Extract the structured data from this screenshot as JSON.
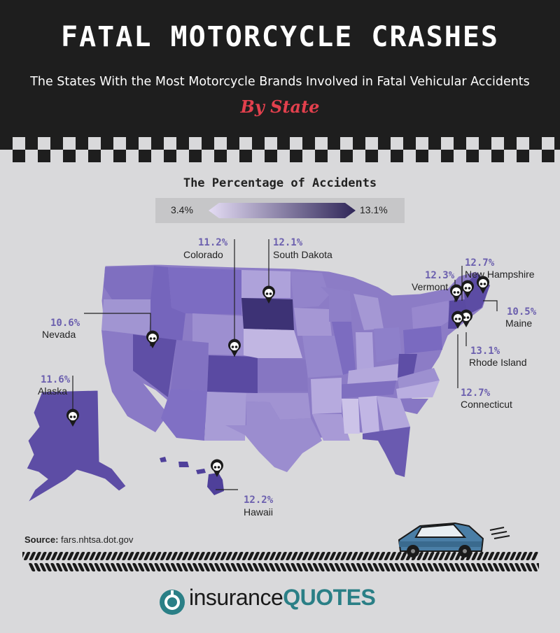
{
  "header": {
    "title": "FATAL MOTORCYCLE CRASHES",
    "subtitle": "The States With the Most Motorcycle Brands Involved in Fatal Vehicular Accidents",
    "by_state": "By State"
  },
  "legend": {
    "title": "The Percentage of Accidents",
    "min": "3.4%",
    "max": "13.1%",
    "color_light": "#d7cdee",
    "color_dark": "#2f2658"
  },
  "callouts": [
    {
      "id": "colorado",
      "pct": "11.2%",
      "name": "Colorado"
    },
    {
      "id": "south-dakota",
      "pct": "12.1%",
      "name": "South Dakota"
    },
    {
      "id": "nevada",
      "pct": "10.6%",
      "name": "Nevada"
    },
    {
      "id": "alaska",
      "pct": "11.6%",
      "name": "Alaska"
    },
    {
      "id": "hawaii",
      "pct": "12.2%",
      "name": "Hawaii"
    },
    {
      "id": "vermont",
      "pct": "12.3%",
      "name": "Vermont"
    },
    {
      "id": "new-hampshire",
      "pct": "12.7%",
      "name": "New Hampshire"
    },
    {
      "id": "maine",
      "pct": "10.5%",
      "name": "Maine"
    },
    {
      "id": "rhode-island",
      "pct": "13.1%",
      "name": "Rhode Island"
    },
    {
      "id": "connecticut",
      "pct": "12.7%",
      "name": "Connecticut"
    }
  ],
  "source": {
    "label": "Source:",
    "value": "fars.nhtsa.dot.gov"
  },
  "logo": {
    "part1": "insurance",
    "part2": "QUOTES"
  },
  "colors": {
    "header_bg": "#1e1e1e",
    "accent": "#e2404d",
    "pct_text": "#6b5fae",
    "background": "#d9d9db",
    "logo_teal": "#2a7f86"
  }
}
